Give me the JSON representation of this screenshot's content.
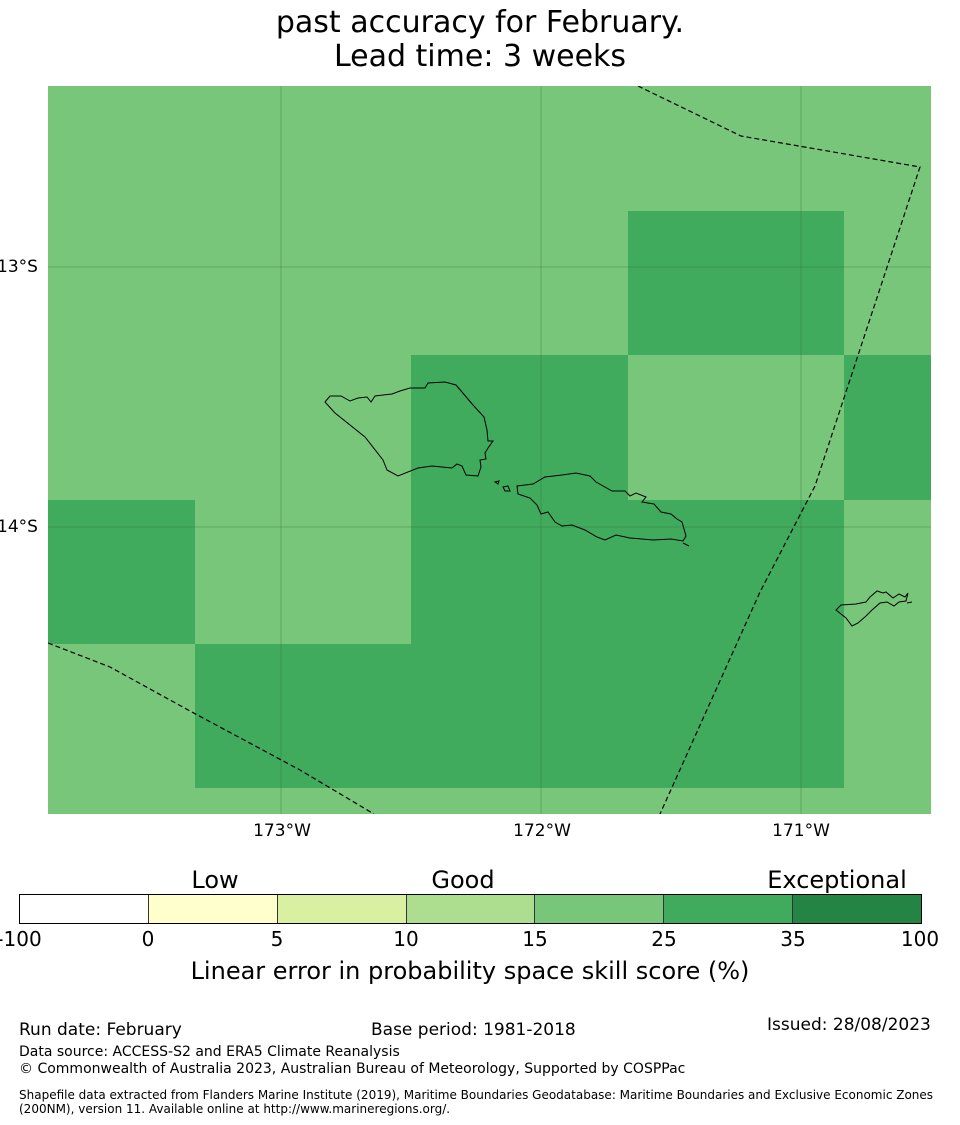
{
  "title": {
    "line1": "past accuracy for February.",
    "line2": "Lead time: 3 weeks"
  },
  "map": {
    "latitude_labels": [
      "13°S",
      "14°S"
    ],
    "longitude_labels": [
      "173°W",
      "172°W",
      "171°W"
    ],
    "cell_colors": {
      "level_15_25": "#78c679",
      "level_25_35": "#41ab5d"
    },
    "land_features": [
      "Savai'i",
      "Upolu",
      "Tutuila"
    ],
    "boundary_style": "dashed"
  },
  "legend": {
    "categories": [
      "Low",
      "Good",
      "Exceptional"
    ],
    "tick_labels": [
      "-100",
      "0",
      "5",
      "10",
      "15",
      "25",
      "35",
      "100"
    ],
    "colors": [
      "#ffffff",
      "#ffffcc",
      "#d9f0a3",
      "#addd8e",
      "#78c679",
      "#41ab5d",
      "#238443"
    ],
    "title": "Linear error in probability space skill score (%)"
  },
  "footer": {
    "run_date": "Run date: February",
    "base_period": "Base period: 1981-2018",
    "issued": "Issued: 28/08/2023",
    "data_source": "Data source: ACCESS-S2 and ERA5 Climate Reanalysis",
    "copyright": "© Commonwealth of Australia 2023, Australian Bureau of Meteorology, Supported by COSPPac",
    "shapefile_line1": "Shapefile data extracted from Flanders Marine Institute (2019), Maritime Boundaries Geodatabase: Maritime Boundaries and Exclusive Economic Zones",
    "shapefile_line2": "(200NM), version 11. Available online at http://www.marineregions.org/."
  }
}
